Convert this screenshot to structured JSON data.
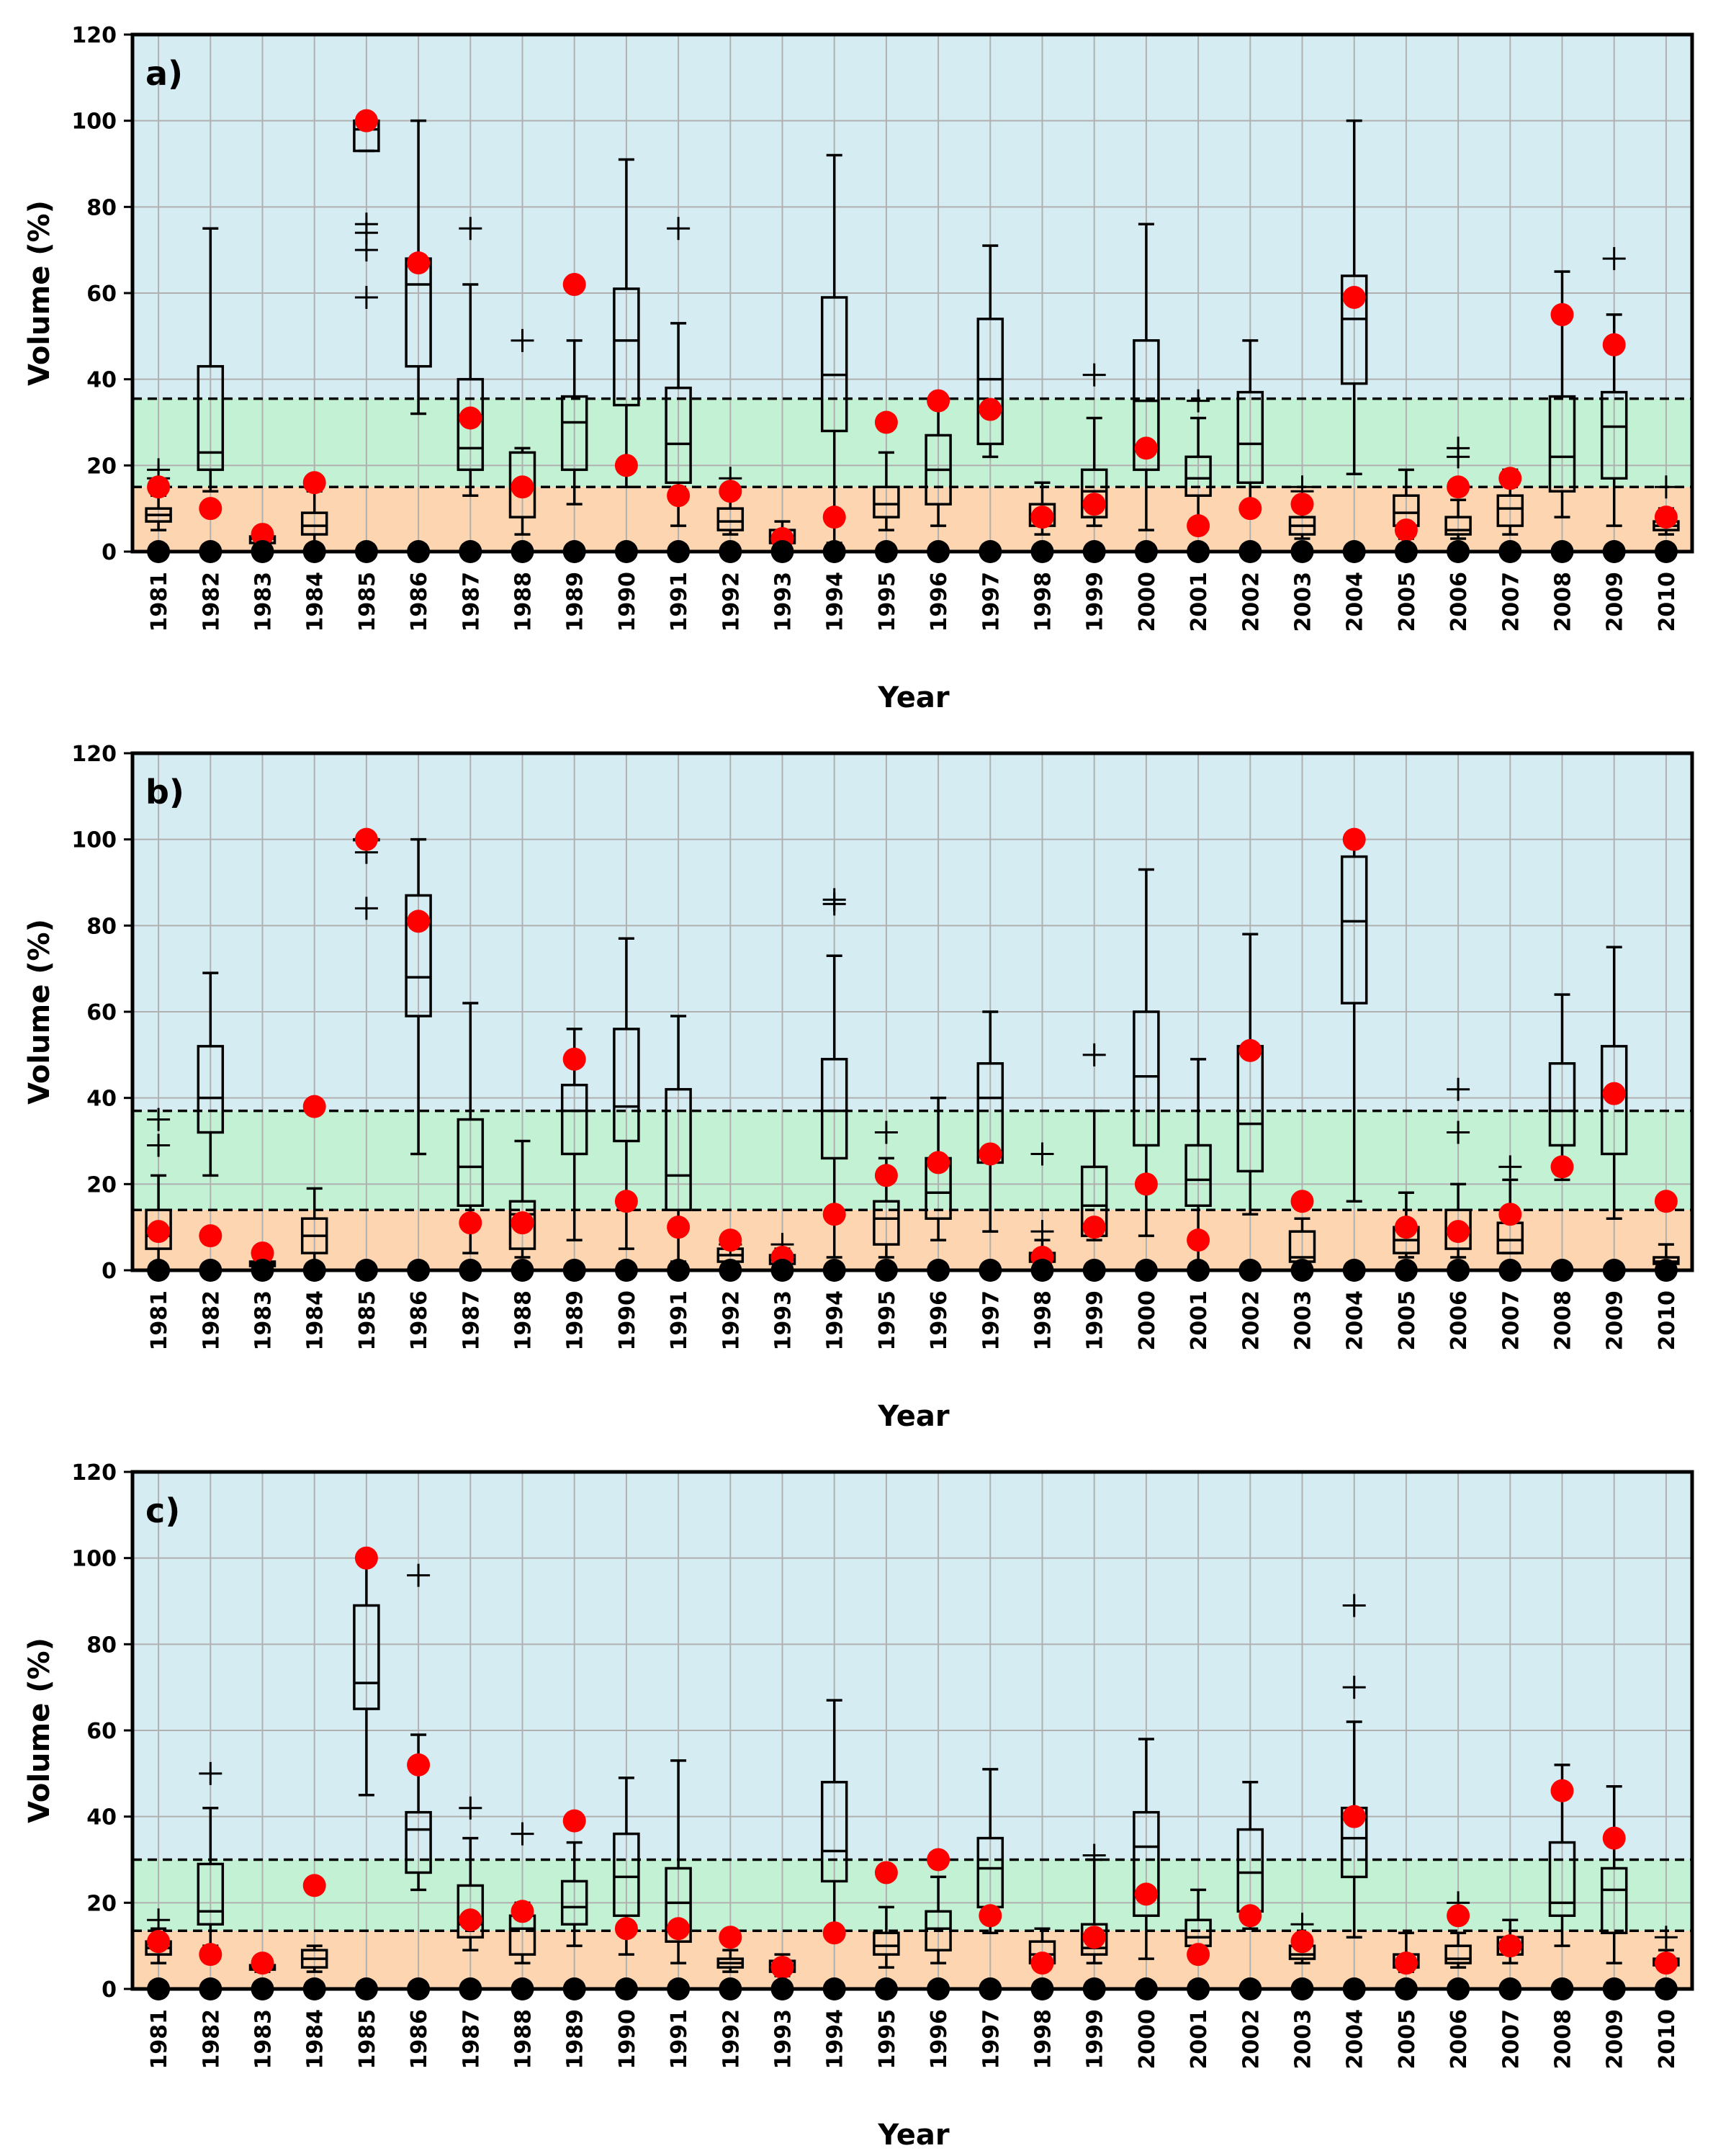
{
  "chart_data": [
    {
      "type": "box",
      "panel_label": "a)",
      "xlabel": "Year",
      "ylabel": "Volume (%)",
      "ylim": [
        0,
        120
      ],
      "yticks": [
        0,
        20,
        40,
        60,
        80,
        100,
        120
      ],
      "grid": true,
      "bands": {
        "lower": 15,
        "upper": 35.5,
        "colors": {
          "low": "#fdd5b0",
          "mid": "#c2f2d3",
          "high": "#d6ecf3"
        }
      },
      "categories": [
        "1981",
        "1982",
        "1983",
        "1984",
        "1985",
        "1986",
        "1987",
        "1988",
        "1989",
        "1990",
        "1991",
        "1992",
        "1993",
        "1994",
        "1995",
        "1996",
        "1997",
        "1998",
        "1999",
        "2000",
        "2001",
        "2002",
        "2003",
        "2004",
        "2005",
        "2006",
        "2007",
        "2008",
        "2009",
        "2010"
      ],
      "boxes": [
        {
          "wlo": 5,
          "q1": 7,
          "med": 8.5,
          "q3": 10,
          "whi": 13,
          "out": [
            19,
            17
          ]
        },
        {
          "wlo": 14,
          "q1": 19,
          "med": 23,
          "q3": 43,
          "whi": 75,
          "out": []
        },
        {
          "wlo": 1,
          "q1": 2,
          "med": 3,
          "q3": 3.5,
          "whi": 4,
          "out": []
        },
        {
          "wlo": 1,
          "q1": 4,
          "med": 6,
          "q3": 9,
          "whi": 14,
          "out": []
        },
        {
          "wlo": 93,
          "q1": 93,
          "med": 98,
          "q3": 100,
          "whi": 100,
          "out": [
            76,
            74,
            70,
            59
          ]
        },
        {
          "wlo": 32,
          "q1": 43,
          "med": 62,
          "q3": 68,
          "whi": 100,
          "out": []
        },
        {
          "wlo": 13,
          "q1": 19,
          "med": 24,
          "q3": 40,
          "whi": 62,
          "out": [
            75
          ]
        },
        {
          "wlo": 4,
          "q1": 8,
          "med": 15,
          "q3": 23,
          "whi": 24,
          "out": [
            49
          ]
        },
        {
          "wlo": 11,
          "q1": 19,
          "med": 30,
          "q3": 36,
          "whi": 49,
          "out": []
        },
        {
          "wlo": 15,
          "q1": 34,
          "med": 49,
          "q3": 61,
          "whi": 91,
          "out": []
        },
        {
          "wlo": 6,
          "q1": 16,
          "med": 25,
          "q3": 38,
          "whi": 53,
          "out": [
            75
          ]
        },
        {
          "wlo": 4,
          "q1": 5,
          "med": 7,
          "q3": 10,
          "whi": 15,
          "out": [
            17
          ]
        },
        {
          "wlo": 1,
          "q1": 2,
          "med": 3.5,
          "q3": 5,
          "whi": 7,
          "out": []
        },
        {
          "wlo": 2,
          "q1": 28,
          "med": 41,
          "q3": 59,
          "whi": 92,
          "out": []
        },
        {
          "wlo": 5,
          "q1": 8,
          "med": 11,
          "q3": 15,
          "whi": 23,
          "out": []
        },
        {
          "wlo": 6,
          "q1": 11,
          "med": 19,
          "q3": 27,
          "whi": 35,
          "out": []
        },
        {
          "wlo": 22,
          "q1": 25,
          "med": 40,
          "q3": 54,
          "whi": 71,
          "out": []
        },
        {
          "wlo": 4,
          "q1": 6,
          "med": 8,
          "q3": 11,
          "whi": 16,
          "out": []
        },
        {
          "wlo": 6,
          "q1": 8,
          "med": 14,
          "q3": 19,
          "whi": 31,
          "out": [
            41
          ]
        },
        {
          "wlo": 5,
          "q1": 19,
          "med": 35,
          "q3": 49,
          "whi": 76,
          "out": []
        },
        {
          "wlo": 6,
          "q1": 13,
          "med": 17,
          "q3": 22,
          "whi": 31,
          "out": [
            35
          ]
        },
        {
          "wlo": 9,
          "q1": 16,
          "med": 25,
          "q3": 37,
          "whi": 49,
          "out": []
        },
        {
          "wlo": 3,
          "q1": 4,
          "med": 6,
          "q3": 8,
          "whi": 12,
          "out": [
            15,
            14
          ]
        },
        {
          "wlo": 18,
          "q1": 39,
          "med": 54,
          "q3": 64,
          "whi": 100,
          "out": []
        },
        {
          "wlo": 3,
          "q1": 6,
          "med": 9,
          "q3": 13,
          "whi": 19,
          "out": []
        },
        {
          "wlo": 3,
          "q1": 4,
          "med": 5,
          "q3": 8,
          "whi": 12,
          "out": [
            24,
            22
          ]
        },
        {
          "wlo": 4,
          "q1": 6,
          "med": 10,
          "q3": 13,
          "whi": 19,
          "out": []
        },
        {
          "wlo": 8,
          "q1": 14,
          "med": 22,
          "q3": 36,
          "whi": 65,
          "out": []
        },
        {
          "wlo": 6,
          "q1": 17,
          "med": 29,
          "q3": 37,
          "whi": 55,
          "out": [
            68
          ]
        },
        {
          "wlo": 4,
          "q1": 5,
          "med": 6,
          "q3": 7,
          "whi": 10,
          "out": [
            15
          ]
        }
      ],
      "observed": [
        15,
        10,
        4,
        16,
        100,
        67,
        31,
        15,
        62,
        20,
        13,
        14,
        3,
        8,
        30,
        35,
        33,
        8,
        11,
        24,
        6,
        10,
        11,
        59,
        5,
        15,
        17,
        55,
        48,
        8
      ]
    },
    {
      "type": "box",
      "panel_label": "b)",
      "xlabel": "Year",
      "ylabel": "Volume (%)",
      "ylim": [
        0,
        120
      ],
      "yticks": [
        0,
        20,
        40,
        60,
        80,
        100,
        120
      ],
      "grid": true,
      "bands": {
        "lower": 14,
        "upper": 37,
        "colors": {
          "low": "#fdd5b0",
          "mid": "#c2f2d3",
          "high": "#d6ecf3"
        }
      },
      "categories": [
        "1981",
        "1982",
        "1983",
        "1984",
        "1985",
        "1986",
        "1987",
        "1988",
        "1989",
        "1990",
        "1991",
        "1992",
        "1993",
        "1994",
        "1995",
        "1996",
        "1997",
        "1998",
        "1999",
        "2000",
        "2001",
        "2002",
        "2003",
        "2004",
        "2005",
        "2006",
        "2007",
        "2008",
        "2009",
        "2010"
      ],
      "boxes": [
        {
          "wlo": 1,
          "q1": 5,
          "med": 8,
          "q3": 14,
          "whi": 22,
          "out": [
            35,
            29
          ]
        },
        {
          "wlo": 22,
          "q1": 32,
          "med": 40,
          "q3": 52,
          "whi": 69,
          "out": []
        },
        {
          "wlo": 0.5,
          "q1": 1,
          "med": 1.5,
          "q3": 2,
          "whi": 3,
          "out": []
        },
        {
          "wlo": 1,
          "q1": 4,
          "med": 8,
          "q3": 12,
          "whi": 19,
          "out": []
        },
        {
          "wlo": 100,
          "q1": 100,
          "med": 100,
          "q3": 100,
          "whi": 100,
          "out": [
            97,
            84
          ]
        },
        {
          "wlo": 27,
          "q1": 59,
          "med": 68,
          "q3": 87,
          "whi": 100,
          "out": []
        },
        {
          "wlo": 4,
          "q1": 15,
          "med": 24,
          "q3": 35,
          "whi": 62,
          "out": []
        },
        {
          "wlo": 3,
          "q1": 5,
          "med": 13,
          "q3": 16,
          "whi": 30,
          "out": []
        },
        {
          "wlo": 7,
          "q1": 27,
          "med": 37,
          "q3": 43,
          "whi": 56,
          "out": []
        },
        {
          "wlo": 5,
          "q1": 30,
          "med": 38,
          "q3": 56,
          "whi": 77,
          "out": []
        },
        {
          "wlo": 2,
          "q1": 14,
          "med": 22,
          "q3": 42,
          "whi": 59,
          "out": []
        },
        {
          "wlo": 1,
          "q1": 2,
          "med": 3.5,
          "q3": 5,
          "whi": 7,
          "out": [
            6
          ]
        },
        {
          "wlo": 1,
          "q1": 1.5,
          "med": 2.5,
          "q3": 3.5,
          "whi": 5,
          "out": [
            6
          ]
        },
        {
          "wlo": 3,
          "q1": 26,
          "med": 37,
          "q3": 49,
          "whi": 73,
          "out": [
            86,
            85
          ]
        },
        {
          "wlo": 3,
          "q1": 6,
          "med": 12,
          "q3": 16,
          "whi": 26,
          "out": [
            32
          ]
        },
        {
          "wlo": 7,
          "q1": 12,
          "med": 18,
          "q3": 26,
          "whi": 40,
          "out": []
        },
        {
          "wlo": 9,
          "q1": 25,
          "med": 40,
          "q3": 48,
          "whi": 60,
          "out": []
        },
        {
          "wlo": 1,
          "q1": 2,
          "med": 3,
          "q3": 4,
          "whi": 7,
          "out": [
            27,
            9
          ]
        },
        {
          "wlo": 7,
          "q1": 8,
          "med": 15,
          "q3": 24,
          "whi": 37,
          "out": [
            50
          ]
        },
        {
          "wlo": 8,
          "q1": 29,
          "med": 45,
          "q3": 60,
          "whi": 93,
          "out": []
        },
        {
          "wlo": 1,
          "q1": 15,
          "med": 21,
          "q3": 29,
          "whi": 49,
          "out": []
        },
        {
          "wlo": 13,
          "q1": 23,
          "med": 34,
          "q3": 52,
          "whi": 78,
          "out": []
        },
        {
          "wlo": 1,
          "q1": 2,
          "med": 3,
          "q3": 9,
          "whi": 12,
          "out": []
        },
        {
          "wlo": 16,
          "q1": 62,
          "med": 81,
          "q3": 96,
          "whi": 100,
          "out": []
        },
        {
          "wlo": 3,
          "q1": 4,
          "med": 7,
          "q3": 10,
          "whi": 18,
          "out": []
        },
        {
          "wlo": 3,
          "q1": 5,
          "med": 9,
          "q3": 14,
          "whi": 20,
          "out": [
            42,
            32
          ]
        },
        {
          "wlo": 4,
          "q1": 4,
          "med": 7,
          "q3": 11,
          "whi": 21,
          "out": [
            24
          ]
        },
        {
          "wlo": 21,
          "q1": 29,
          "med": 37,
          "q3": 48,
          "whi": 64,
          "out": []
        },
        {
          "wlo": 12,
          "q1": 27,
          "med": 41,
          "q3": 52,
          "whi": 75,
          "out": []
        },
        {
          "wlo": 1,
          "q1": 1.5,
          "med": 2,
          "q3": 3,
          "whi": 6,
          "out": []
        }
      ],
      "observed": [
        9,
        8,
        4,
        38,
        100,
        81,
        11,
        11,
        49,
        16,
        10,
        7,
        3,
        13,
        22,
        25,
        27,
        3,
        10,
        20,
        7,
        51,
        16,
        100,
        10,
        9,
        13,
        24,
        41,
        16
      ]
    },
    {
      "type": "box",
      "panel_label": "c)",
      "xlabel": "Year",
      "ylabel": "Volume (%)",
      "ylim": [
        0,
        120
      ],
      "yticks": [
        0,
        20,
        40,
        60,
        80,
        100,
        120
      ],
      "grid": true,
      "bands": {
        "lower": 13.5,
        "upper": 30,
        "colors": {
          "low": "#fdd5b0",
          "mid": "#c2f2d3",
          "high": "#d6ecf3"
        }
      },
      "categories": [
        "1981",
        "1982",
        "1983",
        "1984",
        "1985",
        "1986",
        "1987",
        "1988",
        "1989",
        "1990",
        "1991",
        "1992",
        "1993",
        "1994",
        "1995",
        "1996",
        "1997",
        "1998",
        "1999",
        "2000",
        "2001",
        "2002",
        "2003",
        "2004",
        "2005",
        "2006",
        "2007",
        "2008",
        "2009",
        "2010"
      ],
      "boxes": [
        {
          "wlo": 6,
          "q1": 8,
          "med": 9.5,
          "q3": 11,
          "whi": 14,
          "out": [
            16
          ]
        },
        {
          "wlo": 10,
          "q1": 15,
          "med": 18,
          "q3": 29,
          "whi": 42,
          "out": [
            50
          ]
        },
        {
          "wlo": 4,
          "q1": 4.5,
          "med": 5,
          "q3": 5.5,
          "whi": 6,
          "out": []
        },
        {
          "wlo": 4,
          "q1": 5,
          "med": 7,
          "q3": 9,
          "whi": 10,
          "out": []
        },
        {
          "wlo": 45,
          "q1": 65,
          "med": 71,
          "q3": 89,
          "whi": 100,
          "out": []
        },
        {
          "wlo": 23,
          "q1": 27,
          "med": 37,
          "q3": 41,
          "whi": 59,
          "out": [
            96
          ]
        },
        {
          "wlo": 9,
          "q1": 12,
          "med": 15,
          "q3": 24,
          "whi": 35,
          "out": [
            42
          ]
        },
        {
          "wlo": 6,
          "q1": 8,
          "med": 14,
          "q3": 17,
          "whi": 20,
          "out": [
            36
          ]
        },
        {
          "wlo": 10,
          "q1": 15,
          "med": 19,
          "q3": 25,
          "whi": 34,
          "out": []
        },
        {
          "wlo": 8,
          "q1": 17,
          "med": 26,
          "q3": 36,
          "whi": 49,
          "out": []
        },
        {
          "wlo": 6,
          "q1": 11,
          "med": 20,
          "q3": 28,
          "whi": 53,
          "out": []
        },
        {
          "wlo": 4,
          "q1": 5,
          "med": 6,
          "q3": 7,
          "whi": 9,
          "out": []
        },
        {
          "wlo": 3,
          "q1": 4,
          "med": 5,
          "q3": 6.5,
          "whi": 8,
          "out": []
        },
        {
          "wlo": 13,
          "q1": 25,
          "med": 32,
          "q3": 48,
          "whi": 67,
          "out": []
        },
        {
          "wlo": 5,
          "q1": 8,
          "med": 10,
          "q3": 13,
          "whi": 19,
          "out": []
        },
        {
          "wlo": 6,
          "q1": 9,
          "med": 14,
          "q3": 18,
          "whi": 26,
          "out": []
        },
        {
          "wlo": 13,
          "q1": 19,
          "med": 28,
          "q3": 35,
          "whi": 51,
          "out": []
        },
        {
          "wlo": 5,
          "q1": 6,
          "med": 8,
          "q3": 11,
          "whi": 14,
          "out": []
        },
        {
          "wlo": 6,
          "q1": 8,
          "med": 9.5,
          "q3": 15,
          "whi": 30,
          "out": [
            31
          ]
        },
        {
          "wlo": 7,
          "q1": 17,
          "med": 33,
          "q3": 41,
          "whi": 58,
          "out": []
        },
        {
          "wlo": 7,
          "q1": 10,
          "med": 12,
          "q3": 16,
          "whi": 23,
          "out": []
        },
        {
          "wlo": 14,
          "q1": 18,
          "med": 27,
          "q3": 37,
          "whi": 48,
          "out": []
        },
        {
          "wlo": 6,
          "q1": 7,
          "med": 8,
          "q3": 10,
          "whi": 12,
          "out": [
            15
          ]
        },
        {
          "wlo": 12,
          "q1": 26,
          "med": 35,
          "q3": 42,
          "whi": 62,
          "out": [
            89,
            70
          ]
        },
        {
          "wlo": 4,
          "q1": 5,
          "med": 6,
          "q3": 8,
          "whi": 13,
          "out": []
        },
        {
          "wlo": 5,
          "q1": 6,
          "med": 7,
          "q3": 10,
          "whi": 13,
          "out": [
            20
          ]
        },
        {
          "wlo": 6,
          "q1": 8,
          "med": 10,
          "q3": 12,
          "whi": 16,
          "out": []
        },
        {
          "wlo": 10,
          "q1": 17,
          "med": 20,
          "q3": 34,
          "whi": 52,
          "out": []
        },
        {
          "wlo": 6,
          "q1": 13,
          "med": 23,
          "q3": 28,
          "whi": 47,
          "out": []
        },
        {
          "wlo": 5,
          "q1": 5.5,
          "med": 6,
          "q3": 7,
          "whi": 9,
          "out": [
            12
          ]
        }
      ],
      "observed": [
        11,
        8,
        6,
        24,
        100,
        52,
        16,
        18,
        39,
        14,
        14,
        12,
        5,
        13,
        27,
        30,
        17,
        6,
        12,
        22,
        8,
        17,
        11,
        40,
        6,
        17,
        10,
        46,
        35,
        6
      ]
    }
  ]
}
